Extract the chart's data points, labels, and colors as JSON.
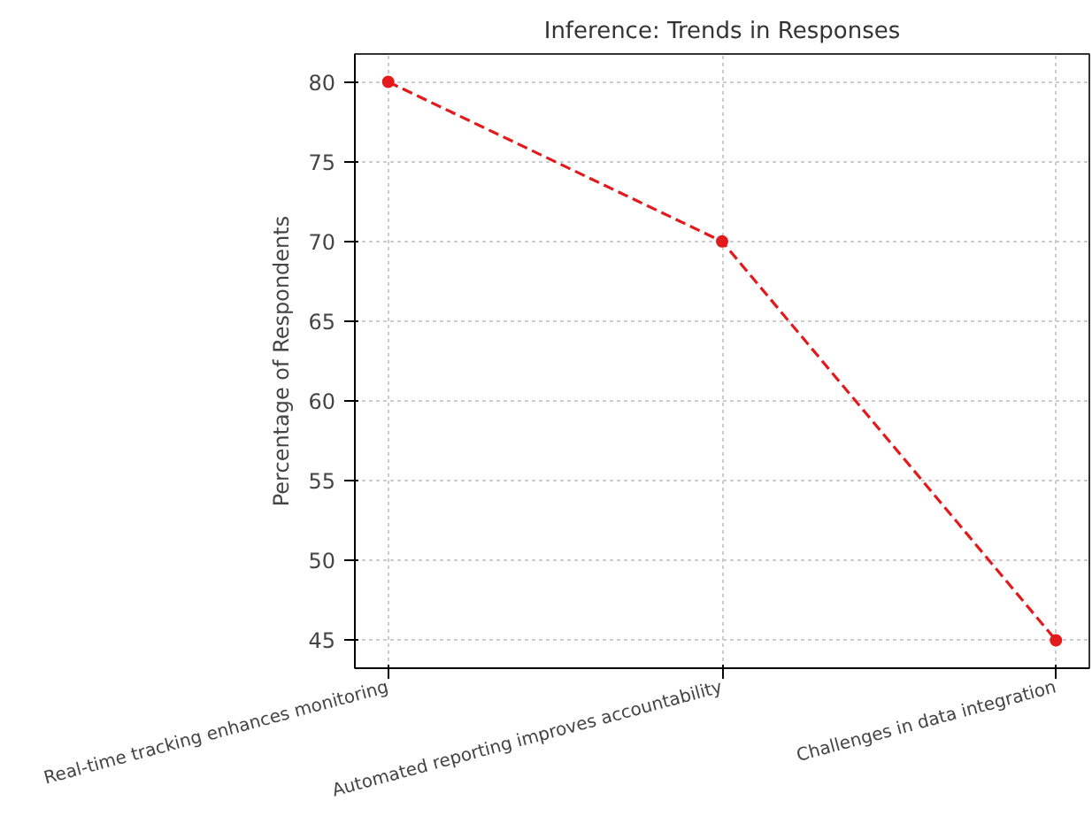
{
  "chart_data": {
    "type": "line",
    "title": "Inference: Trends in Responses",
    "ylabel": "Percentage of Respondents",
    "categories": [
      "Real-time tracking enhances monitoring",
      "Automated reporting improves accountability",
      "Challenges in data integration"
    ],
    "series": [
      {
        "color": "#e31a1c",
        "values": [
          80,
          70,
          45
        ]
      }
    ],
    "ylim": [
      43.25,
      81.75
    ],
    "yticks": [
      45,
      50,
      55,
      60,
      65,
      70,
      75,
      80
    ],
    "grid": true,
    "marker": "circle",
    "line_style": "dashed"
  }
}
